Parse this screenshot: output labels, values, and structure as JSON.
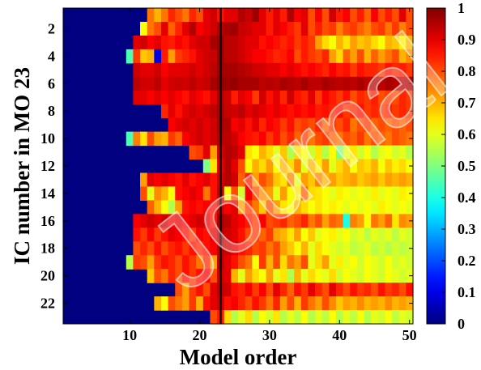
{
  "chart_data": {
    "type": "heatmap",
    "xlabel": "Model order",
    "ylabel": "IC number in MO 23",
    "x_ticks": [
      10,
      20,
      30,
      40,
      50
    ],
    "y_ticks": [
      2,
      4,
      6,
      8,
      10,
      12,
      14,
      16,
      18,
      20,
      22
    ],
    "colorbar_ticks": [
      "1",
      "0.9",
      "0.8",
      "0.7",
      "0.6",
      "0.5",
      "0.4",
      "0.3",
      "0.2",
      "0.1",
      "0"
    ],
    "xlim": [
      1,
      50
    ],
    "ylim": [
      1,
      23
    ],
    "clim": [
      0,
      1
    ],
    "colormap": "jet",
    "reference_line_x": 23,
    "watermark": "Journal",
    "rows": [
      {
        "ic": 1,
        "start": 13,
        "values": [
          0.76,
          0.7,
          0.76,
          0.84,
          0.8,
          0.76,
          0.84,
          0.8,
          0.9,
          0.92,
          0.86,
          0.9,
          0.9,
          0.95,
          0.93,
          0.97,
          0.9,
          0.85,
          0.9,
          0.85,
          0.95,
          0.88,
          0.9,
          0.8,
          0.88,
          0.8,
          0.92,
          0.85,
          0.88,
          0.8,
          0.85,
          0.78,
          0.88,
          0.8,
          0.85,
          0.8,
          0.9,
          0.8
        ]
      },
      {
        "ic": 2,
        "start": 12,
        "values": [
          0.62,
          0.76,
          0.8,
          0.9,
          0.78,
          0.84,
          0.9,
          0.95,
          0.88,
          0.9,
          0.92,
          0.95,
          0.96,
          0.97,
          0.93,
          0.92,
          0.9,
          0.9,
          0.85,
          0.9,
          0.88,
          0.85,
          0.82,
          0.9,
          0.8,
          0.85,
          0.8,
          0.82,
          0.75,
          0.8,
          0.82,
          0.78,
          0.75,
          0.8,
          0.82,
          0.76,
          0.82,
          0.75,
          0.8
        ]
      },
      {
        "ic": 3,
        "start": 11,
        "values": [
          0.9,
          0.92,
          0.88,
          0.9,
          0.86,
          0.85,
          0.88,
          0.86,
          0.9,
          0.92,
          0.92,
          0.96,
          0.97,
          0.94,
          0.94,
          0.92,
          0.9,
          0.9,
          0.86,
          0.88,
          0.86,
          0.84,
          0.86,
          0.82,
          0.85,
          0.82,
          0.72,
          0.66,
          0.62,
          0.7,
          0.65,
          0.72,
          0.68,
          0.7,
          0.66,
          0.62,
          0.7,
          0.68,
          0.64,
          0.7
        ]
      },
      {
        "ic": 4,
        "start": 10,
        "values": [
          0.45,
          0.82,
          0.68,
          0.7,
          0.1,
          0.85,
          0.72,
          0.82,
          0.84,
          0.86,
          0.9,
          0.92,
          0.93,
          0.97,
          0.94,
          0.94,
          0.92,
          0.9,
          0.88,
          0.88,
          0.86,
          0.84,
          0.85,
          0.88,
          0.8,
          0.85,
          0.82,
          0.8,
          0.84,
          0.72,
          0.66,
          0.78,
          0.72,
          0.8,
          0.7,
          0.78,
          0.72,
          0.76,
          0.8,
          0.7,
          0.74
        ]
      },
      {
        "ic": 5,
        "start": 11,
        "values": [
          0.92,
          0.9,
          0.9,
          0.92,
          0.88,
          0.9,
          0.9,
          0.9,
          0.92,
          0.9,
          0.92,
          0.94,
          0.97,
          0.96,
          0.96,
          0.95,
          0.94,
          0.92,
          0.92,
          0.9,
          0.9,
          0.88,
          0.9,
          0.88,
          0.86,
          0.88,
          0.86,
          0.84,
          0.88,
          0.85,
          0.86,
          0.82,
          0.86,
          0.84,
          0.84,
          0.82,
          0.86,
          0.84,
          0.85,
          0.82
        ]
      },
      {
        "ic": 6,
        "start": 11,
        "values": [
          0.94,
          0.92,
          0.92,
          0.94,
          0.9,
          0.92,
          0.93,
          0.92,
          0.94,
          0.92,
          0.93,
          0.96,
          0.98,
          0.97,
          0.98,
          0.96,
          0.96,
          0.96,
          0.94,
          0.95,
          0.94,
          0.96,
          0.95,
          0.94,
          0.96,
          0.94,
          0.94,
          0.96,
          0.95,
          0.94,
          0.95,
          0.94,
          0.96,
          0.94,
          0.95,
          0.94,
          0.96,
          0.95,
          0.94,
          0.95
        ]
      },
      {
        "ic": 7,
        "start": 11,
        "values": [
          0.9,
          0.9,
          0.88,
          0.9,
          0.88,
          0.9,
          0.88,
          0.86,
          0.9,
          0.88,
          0.86,
          0.9,
          0.95,
          0.92,
          0.85,
          0.9,
          0.88,
          0.82,
          0.92,
          0.86,
          0.9,
          0.84,
          0.92,
          0.86,
          0.84,
          0.9,
          0.82,
          0.88,
          0.85,
          0.82,
          0.86,
          0.8,
          0.84,
          0.82,
          0.85,
          0.8,
          0.82,
          0.8,
          0.84,
          0.82
        ]
      },
      {
        "ic": 8,
        "start": 15,
        "values": [
          0.84,
          0.9,
          0.86,
          0.9,
          0.92,
          0.9,
          0.92,
          0.94,
          0.96,
          0.93,
          0.92,
          0.94,
          0.9,
          0.92,
          0.9,
          0.88,
          0.9,
          0.88,
          0.86,
          0.88,
          0.86,
          0.88,
          0.85,
          0.86,
          0.84,
          0.86,
          0.82,
          0.84,
          0.86,
          0.82,
          0.84,
          0.82,
          0.84,
          0.82,
          0.84,
          0.82
        ]
      },
      {
        "ic": 9,
        "start": 16,
        "values": [
          0.88,
          0.9,
          0.92,
          0.9,
          0.92,
          0.9,
          0.92,
          0.96,
          0.95,
          0.88,
          0.9,
          0.86,
          0.9,
          0.84,
          0.88,
          0.86,
          0.82,
          0.86,
          0.8,
          0.82,
          0.8,
          0.84,
          0.78,
          0.82,
          0.8,
          0.84,
          0.76,
          0.8,
          0.82,
          0.78,
          0.8,
          0.78,
          0.8,
          0.78,
          0.8
        ]
      },
      {
        "ic": 10,
        "start": 10,
        "values": [
          0.45,
          0.75,
          0.65,
          0.8,
          0.72,
          0.7,
          0.82,
          0.78,
          0.88,
          0.9,
          0.92,
          0.9,
          0.92,
          0.95,
          0.94,
          0.92,
          0.88,
          0.86,
          0.85,
          0.88,
          0.82,
          0.86,
          0.8,
          0.84,
          0.78,
          0.82,
          0.76,
          0.8,
          0.82,
          0.78,
          0.76,
          0.8,
          0.78,
          0.82,
          0.76,
          0.8,
          0.78,
          0.76,
          0.8,
          0.78,
          0.76
        ]
      },
      {
        "ic": 11,
        "start": 19,
        "values": [
          0.8,
          0.82,
          0.9,
          0.72,
          0.92,
          0.95,
          0.94,
          0.9,
          0.65,
          0.62,
          0.7,
          0.66,
          0.6,
          0.68,
          0.55,
          0.66,
          0.62,
          0.58,
          0.65,
          0.55,
          0.62,
          0.5,
          0.6,
          0.65,
          0.58,
          0.62,
          0.55,
          0.6,
          0.62,
          0.58,
          0.6,
          0.55
        ]
      },
      {
        "ic": 12,
        "start": 21,
        "values": [
          0.5,
          0.65,
          0.9,
          0.95,
          0.9,
          0.8,
          0.62,
          0.7,
          0.66,
          0.72,
          0.62,
          0.7,
          0.66,
          0.74,
          0.6,
          0.7,
          0.64,
          0.72,
          0.6,
          0.66,
          0.7,
          0.62,
          0.68,
          0.66,
          0.7,
          0.62,
          0.68,
          0.64,
          0.66,
          0.62
        ]
      },
      {
        "ic": 13,
        "start": 12,
        "values": [
          0.72,
          0.9,
          0.88,
          0.9,
          0.88,
          0.86,
          0.9,
          0.86,
          0.88,
          0.9,
          0.86,
          0.92,
          0.95,
          0.92,
          0.78,
          0.85,
          0.72,
          0.8,
          0.76,
          0.68,
          0.65,
          0.75,
          0.6,
          0.72,
          0.68,
          0.75,
          0.7,
          0.72,
          0.68,
          0.7,
          0.72,
          0.68,
          0.7,
          0.72,
          0.68,
          0.72,
          0.7,
          0.72,
          0.7
        ]
      },
      {
        "ic": 14,
        "start": 12,
        "values": [
          0.8,
          0.6,
          0.74,
          0.7,
          0.62,
          0.86,
          0.88,
          0.9,
          0.88,
          0.76,
          0.86,
          0.94,
          0.62,
          0.8,
          0.58,
          0.88,
          0.8,
          0.74,
          0.72,
          0.6,
          0.72,
          0.62,
          0.65,
          0.78,
          0.66,
          0.65,
          0.62,
          0.6,
          0.64,
          0.62,
          0.6,
          0.62,
          0.6,
          0.64,
          0.6,
          0.62,
          0.6,
          0.64,
          0.62
        ]
      },
      {
        "ic": 15,
        "start": 13,
        "values": [
          0.78,
          0.7,
          0.62,
          0.55,
          0.72,
          0.86,
          0.88,
          0.86,
          0.88,
          0.86,
          0.92,
          0.88,
          0.9,
          0.72,
          0.82,
          0.76,
          0.68,
          0.8,
          0.72,
          0.65,
          0.62,
          0.7,
          0.66,
          0.62,
          0.65,
          0.62,
          0.64,
          0.62,
          0.6,
          0.62,
          0.6,
          0.62,
          0.6,
          0.64,
          0.62,
          0.6,
          0.62,
          0.6
        ]
      },
      {
        "ic": 16,
        "start": 11,
        "values": [
          0.88,
          0.9,
          0.92,
          0.9,
          0.92,
          0.88,
          0.9,
          0.88,
          0.9,
          0.92,
          0.9,
          0.86,
          0.96,
          0.94,
          0.9,
          0.88,
          0.85,
          0.82,
          0.88,
          0.8,
          0.82,
          0.84,
          0.78,
          0.8,
          0.84,
          0.76,
          0.8,
          0.72,
          0.78,
          0.76,
          0.4,
          0.75,
          0.72,
          0.62,
          0.76,
          0.72,
          0.78,
          0.65,
          0.74,
          0.72
        ]
      },
      {
        "ic": 17,
        "start": 11,
        "values": [
          0.86,
          0.82,
          0.88,
          0.82,
          0.86,
          0.9,
          0.88,
          0.86,
          0.82,
          0.88,
          0.86,
          0.9,
          0.95,
          0.92,
          0.9,
          0.86,
          0.8,
          0.82,
          0.78,
          0.82,
          0.72,
          0.7,
          0.65,
          0.72,
          0.62,
          0.68,
          0.6,
          0.62,
          0.64,
          0.6,
          0.62,
          0.58,
          0.6,
          0.56,
          0.6,
          0.58,
          0.6,
          0.56,
          0.6,
          0.58
        ]
      },
      {
        "ic": 18,
        "start": 11,
        "values": [
          0.8,
          0.84,
          0.8,
          0.86,
          0.8,
          0.84,
          0.86,
          0.82,
          0.86,
          0.84,
          0.86,
          0.88,
          0.94,
          0.92,
          0.9,
          0.86,
          0.84,
          0.8,
          0.82,
          0.76,
          0.8,
          0.72,
          0.68,
          0.62,
          0.7,
          0.6,
          0.66,
          0.62,
          0.6,
          0.58,
          0.6,
          0.56,
          0.58,
          0.6,
          0.56,
          0.58,
          0.55,
          0.58,
          0.56,
          0.58
        ]
      },
      {
        "ic": 19,
        "start": 10,
        "values": [
          0.55,
          0.82,
          0.8,
          0.72,
          0.82,
          0.86,
          0.84,
          0.8,
          0.86,
          0.82,
          0.76,
          0.84,
          0.72,
          0.94,
          0.9,
          0.86,
          0.8,
          0.76,
          0.62,
          0.82,
          0.7,
          0.8,
          0.66,
          0.76,
          0.72,
          0.8,
          0.6,
          0.66,
          0.72,
          0.6,
          0.64,
          0.6,
          0.62,
          0.58,
          0.62,
          0.6,
          0.58,
          0.62,
          0.58,
          0.6,
          0.58
        ]
      },
      {
        "ic": 20,
        "start": 13,
        "values": [
          0.68,
          0.8,
          0.76,
          0.84,
          0.8,
          0.86,
          0.82,
          0.86,
          0.88,
          0.8,
          0.92,
          0.9,
          0.7,
          0.6,
          0.72,
          0.66,
          0.62,
          0.72,
          0.6,
          0.65,
          0.55,
          0.7,
          0.6,
          0.66,
          0.62,
          0.6,
          0.66,
          0.58,
          0.62,
          0.6,
          0.58,
          0.62,
          0.6,
          0.58,
          0.62,
          0.6,
          0.58,
          0.6
        ]
      },
      {
        "ic": 21,
        "start": 17,
        "values": [
          0.8,
          0.72,
          0.82,
          0.86,
          0.8,
          0.9,
          0.94,
          0.92,
          0.86,
          0.84,
          0.88,
          0.82,
          0.88,
          0.8,
          0.9,
          0.84,
          0.78,
          0.86,
          0.82,
          0.9,
          0.84,
          0.8,
          0.9,
          0.84,
          0.8,
          0.86,
          0.82,
          0.84,
          0.8,
          0.86,
          0.82,
          0.84,
          0.8,
          0.86
        ]
      },
      {
        "ic": 22,
        "start": 14,
        "values": [
          0.7,
          0.62,
          0.8,
          0.76,
          0.72,
          0.82,
          0.7,
          0.86,
          0.9,
          0.92,
          0.86,
          0.88,
          0.84,
          0.8,
          0.86,
          0.82,
          0.76,
          0.84,
          0.72,
          0.8,
          0.7,
          0.82,
          0.76,
          0.72,
          0.8,
          0.74,
          0.68,
          0.72,
          0.7,
          0.74,
          0.7,
          0.72,
          0.7,
          0.74,
          0.7,
          0.72,
          0.7
        ]
      },
      {
        "ic": 23,
        "start": 22,
        "values": [
          0.8,
          0.85,
          0.66,
          0.55,
          0.6,
          0.66,
          0.55,
          0.62,
          0.58,
          0.65,
          0.55,
          0.6,
          0.56,
          0.62,
          0.55,
          0.6,
          0.56,
          0.62,
          0.55,
          0.6,
          0.56,
          0.62,
          0.55,
          0.6,
          0.58,
          0.62,
          0.56,
          0.6,
          0.58
        ]
      }
    ]
  }
}
